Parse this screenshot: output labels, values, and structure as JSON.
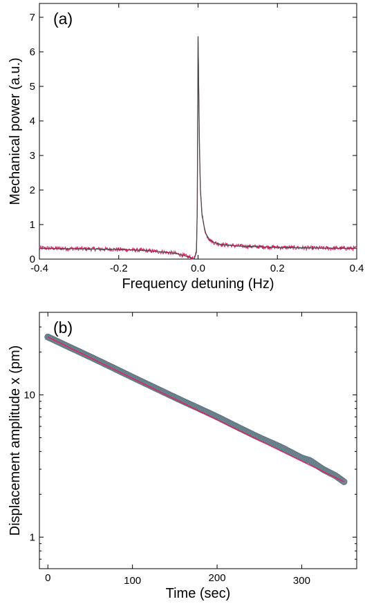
{
  "chart_data": [
    {
      "panel_label": "(a)",
      "type": "line",
      "xlabel": "Frequency detuning (Hz)",
      "ylabel": "Mechanical power (a.u.)",
      "xlim": [
        -0.4,
        0.4
      ],
      "ylim": [
        0,
        7.4
      ],
      "x_ticks": [
        -0.4,
        -0.2,
        0.0,
        0.2,
        0.4
      ],
      "x_tick_labels": [
        "-0.4",
        "-0.2",
        "0.0",
        "0.2",
        "0.4"
      ],
      "y_ticks": [
        0,
        1,
        2,
        3,
        4,
        5,
        6,
        7
      ],
      "y_tick_labels": [
        "0",
        "1",
        "2",
        "3",
        "4",
        "5",
        "6",
        "7"
      ],
      "grid": false,
      "series": [
        {
          "role": "measured",
          "color": "#e0245e",
          "x": [
            -0.4,
            -0.3,
            -0.2,
            -0.15,
            -0.1,
            -0.06,
            -0.04,
            -0.02,
            -0.01,
            -0.004,
            -0.002,
            0.0,
            0.001,
            0.003,
            0.006,
            0.01,
            0.015,
            0.02,
            0.03,
            0.04,
            0.06,
            0.08,
            0.1,
            0.15,
            0.2,
            0.3,
            0.4
          ],
          "y": [
            0.32,
            0.3,
            0.28,
            0.26,
            0.22,
            0.17,
            0.12,
            0.05,
            0.0,
            0.2,
            1.5,
            6.45,
            5.8,
            3.5,
            2.0,
            1.3,
            0.95,
            0.72,
            0.55,
            0.48,
            0.42,
            0.4,
            0.38,
            0.36,
            0.34,
            0.32,
            0.31
          ]
        },
        {
          "role": "fit",
          "color": "#4a4a4a",
          "x": [
            -0.4,
            -0.3,
            -0.2,
            -0.15,
            -0.1,
            -0.06,
            -0.04,
            -0.02,
            -0.01,
            -0.004,
            -0.002,
            0.0,
            0.001,
            0.003,
            0.006,
            0.01,
            0.015,
            0.02,
            0.03,
            0.04,
            0.06,
            0.08,
            0.1,
            0.15,
            0.2,
            0.3,
            0.4
          ],
          "y": [
            0.31,
            0.3,
            0.28,
            0.26,
            0.22,
            0.17,
            0.12,
            0.05,
            0.0,
            0.2,
            1.5,
            6.45,
            5.8,
            3.5,
            2.0,
            1.3,
            0.95,
            0.72,
            0.55,
            0.48,
            0.42,
            0.4,
            0.38,
            0.36,
            0.34,
            0.32,
            0.31
          ]
        }
      ]
    },
    {
      "panel_label": "(b)",
      "type": "scatter",
      "xlabel": "Time (sec)",
      "ylabel": "Displacement amplitude x (pm)",
      "xlim": [
        -10,
        365
      ],
      "ylim": [
        0.6,
        38
      ],
      "yscale": "log",
      "x_ticks": [
        0,
        100,
        200,
        300
      ],
      "x_tick_labels": [
        "0",
        "100",
        "200",
        "300"
      ],
      "y_ticks": [
        1,
        10
      ],
      "y_tick_labels": [
        "1",
        "10"
      ],
      "grid": false,
      "series": [
        {
          "role": "measured",
          "color": "#6e8592",
          "x": [
            0,
            25,
            50,
            75,
            100,
            125,
            150,
            175,
            200,
            225,
            250,
            275,
            300,
            310,
            325,
            340,
            350
          ],
          "y": [
            25.5,
            21.7,
            18.5,
            15.7,
            13.3,
            11.3,
            9.6,
            8.2,
            7.0,
            5.9,
            5.0,
            4.3,
            3.6,
            3.45,
            3.0,
            2.7,
            2.45
          ]
        },
        {
          "role": "fit",
          "color": "#e0245e",
          "x": [
            0,
            350
          ],
          "y": [
            25.5,
            2.45
          ]
        }
      ]
    }
  ]
}
